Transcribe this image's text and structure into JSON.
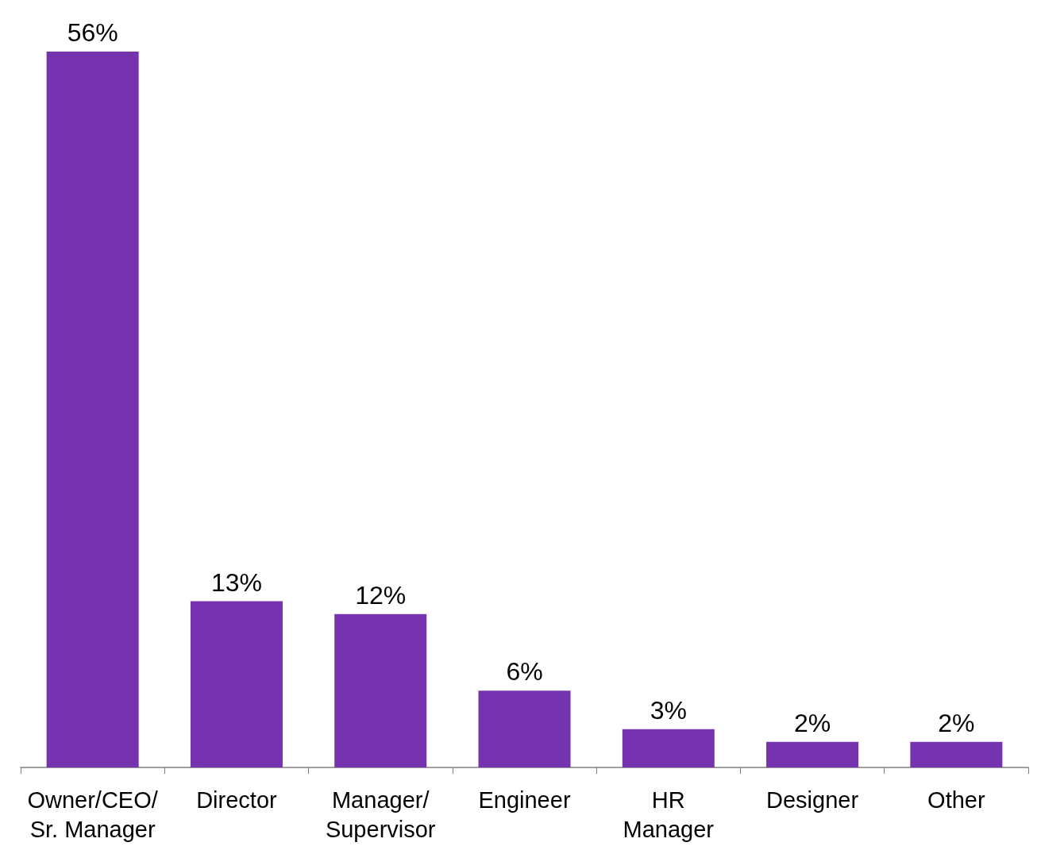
{
  "chart_data": {
    "type": "bar",
    "categories": [
      "Owner/CEO/\nSr. Manager",
      "Director",
      "Manager/\nSupervisor",
      "Engineer",
      "HR\nManager",
      "Designer",
      "Other"
    ],
    "values": [
      56,
      13,
      12,
      6,
      3,
      2,
      2
    ],
    "value_labels": [
      "56%",
      "13%",
      "12%",
      "6%",
      "3%",
      "2%",
      "2%"
    ],
    "color": "#7633b0"
  }
}
